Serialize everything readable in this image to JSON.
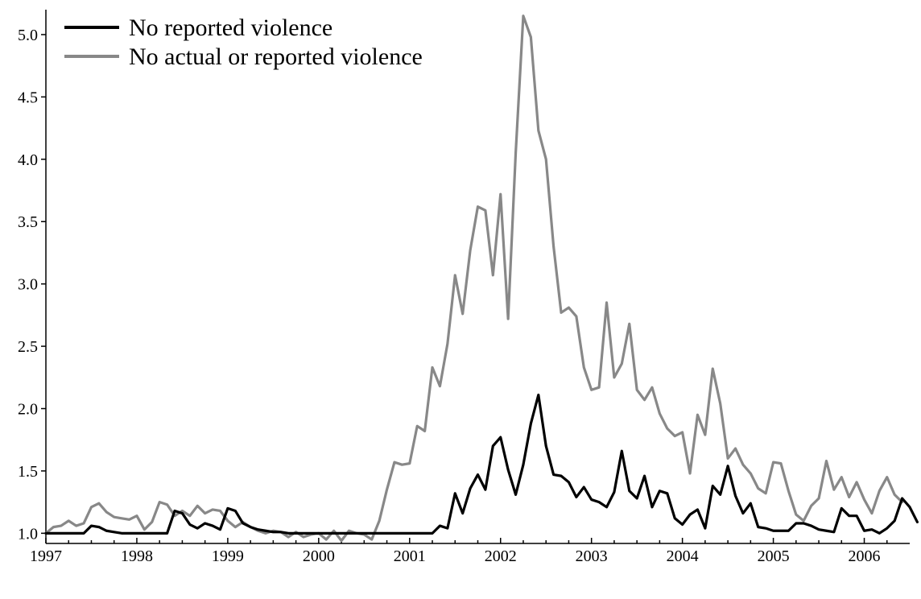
{
  "chart_data": {
    "type": "line",
    "title": "",
    "xlabel": "",
    "ylabel": "",
    "xlim": [
      1997.0,
      2006.5
    ],
    "ylim": [
      0.97,
      5.2
    ],
    "x_ticks": [
      "1997",
      "1998",
      "1999",
      "2000",
      "2001",
      "2002",
      "2003",
      "2004",
      "2005",
      "2006"
    ],
    "y_ticks": [
      "1.0",
      "1.5",
      "2.0",
      "2.5",
      "3.0",
      "3.5",
      "4.0",
      "4.5",
      "5.0"
    ],
    "grid": false,
    "legend_position": "top-left",
    "x_start": "1997-01",
    "x_frequency": "monthly",
    "series": [
      {
        "name": "No reported violence",
        "color": "#000000",
        "values": [
          1.0,
          1.0,
          1.0,
          1.0,
          1.0,
          1.0,
          1.06,
          1.05,
          1.02,
          1.01,
          1.0,
          1.0,
          1.0,
          1.0,
          1.0,
          1.0,
          1.0,
          1.18,
          1.16,
          1.07,
          1.04,
          1.08,
          1.06,
          1.03,
          1.2,
          1.18,
          1.08,
          1.05,
          1.03,
          1.02,
          1.01,
          1.01,
          1.0,
          1.0,
          1.0,
          1.0,
          1.0,
          1.0,
          1.0,
          1.0,
          1.0,
          1.0,
          1.0,
          1.0,
          1.0,
          1.0,
          1.0,
          1.0,
          1.0,
          1.0,
          1.0,
          1.0,
          1.06,
          1.04,
          1.32,
          1.16,
          1.36,
          1.47,
          1.35,
          1.7,
          1.77,
          1.51,
          1.31,
          1.55,
          1.88,
          2.11,
          1.7,
          1.47,
          1.46,
          1.41,
          1.29,
          1.37,
          1.27,
          1.25,
          1.21,
          1.33,
          1.66,
          1.34,
          1.28,
          1.46,
          1.21,
          1.34,
          1.32,
          1.12,
          1.07,
          1.15,
          1.19,
          1.04,
          1.38,
          1.31,
          1.54,
          1.3,
          1.16,
          1.24,
          1.05,
          1.04,
          1.02,
          1.02,
          1.02,
          1.08,
          1.08,
          1.06,
          1.03,
          1.02,
          1.01,
          1.2,
          1.14,
          1.14,
          1.02,
          1.03,
          1.0,
          1.04,
          1.1,
          1.28,
          1.21,
          1.09
        ]
      },
      {
        "name": "No actual or reported violence",
        "color": "#888888",
        "values": [
          1.0,
          1.05,
          1.06,
          1.1,
          1.06,
          1.08,
          1.21,
          1.24,
          1.17,
          1.13,
          1.12,
          1.11,
          1.14,
          1.03,
          1.09,
          1.25,
          1.23,
          1.14,
          1.18,
          1.14,
          1.22,
          1.16,
          1.19,
          1.18,
          1.1,
          1.05,
          1.09,
          1.05,
          1.02,
          1.0,
          1.02,
          1.01,
          0.97,
          1.01,
          0.97,
          0.99,
          1.0,
          0.95,
          1.02,
          0.94,
          1.02,
          1.0,
          0.99,
          0.95,
          1.1,
          1.35,
          1.57,
          1.55,
          1.56,
          1.86,
          1.82,
          2.33,
          2.18,
          2.52,
          3.07,
          2.76,
          3.27,
          3.62,
          3.59,
          3.07,
          3.72,
          2.72,
          4.05,
          5.15,
          4.98,
          4.23,
          4.0,
          3.3,
          2.77,
          2.81,
          2.74,
          2.33,
          2.15,
          2.17,
          2.85,
          2.25,
          2.36,
          2.68,
          2.15,
          2.07,
          2.17,
          1.96,
          1.84,
          1.78,
          1.81,
          1.48,
          1.95,
          1.79,
          2.32,
          2.04,
          1.6,
          1.68,
          1.55,
          1.48,
          1.36,
          1.32,
          1.57,
          1.56,
          1.34,
          1.15,
          1.1,
          1.22,
          1.28,
          1.58,
          1.35,
          1.45,
          1.29,
          1.41,
          1.27,
          1.16,
          1.34,
          1.45,
          1.31,
          1.25
        ]
      }
    ]
  }
}
